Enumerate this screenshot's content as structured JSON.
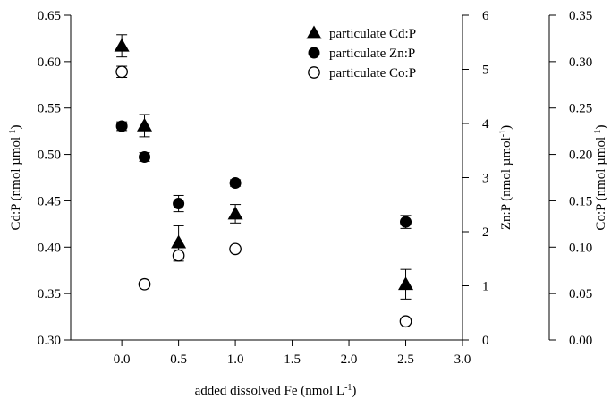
{
  "chart_data": {
    "type": "scatter",
    "x_axis": {
      "label_prefix": "added dissolved Fe (nmol L",
      "label_sup": "-1",
      "label_suffix": ")",
      "range": [
        -0.45,
        3.0
      ],
      "ticks": [
        "0.0",
        "0.5",
        "1.0",
        "1.5",
        "2.0",
        "2.5",
        "3.0"
      ]
    },
    "y_axes": [
      {
        "id": "cd",
        "label_prefix": "Cd:P (nmol µmol",
        "label_sup": "-1",
        "label_suffix": ")",
        "range": [
          0.3,
          0.65
        ],
        "ticks": [
          "0.30",
          "0.35",
          "0.40",
          "0.45",
          "0.50",
          "0.55",
          "0.60",
          "0.65"
        ]
      },
      {
        "id": "zn",
        "label_prefix": "Zn:P (nmol µmol",
        "label_sup": "-1",
        "label_suffix": ")",
        "range": [
          0,
          6
        ],
        "ticks": [
          "0",
          "1",
          "2",
          "3",
          "4",
          "5",
          "6"
        ]
      },
      {
        "id": "co",
        "label_prefix": "Co:P (nmol µmol",
        "label_sup": "-1",
        "label_suffix": ")",
        "range": [
          0.0,
          0.35
        ],
        "ticks": [
          "0.00",
          "0.05",
          "0.10",
          "0.15",
          "0.20",
          "0.25",
          "0.30",
          "0.35"
        ]
      }
    ],
    "series": [
      {
        "name": "particulate Cd:P",
        "axis": "cd",
        "marker": "triangle",
        "points": [
          {
            "x": 0.0,
            "y": 0.617,
            "err": 0.012
          },
          {
            "x": 0.2,
            "y": 0.531,
            "err": 0.012
          },
          {
            "x": 0.5,
            "y": 0.405,
            "err": 0.018
          },
          {
            "x": 1.0,
            "y": 0.436,
            "err": 0.01
          },
          {
            "x": 2.5,
            "y": 0.36,
            "err": 0.016
          }
        ]
      },
      {
        "name": "particulate Zn:P",
        "axis": "zn",
        "marker": "filled-circle",
        "points": [
          {
            "x": 0.0,
            "y": 3.95,
            "err": 0.08
          },
          {
            "x": 0.2,
            "y": 3.38,
            "err": 0.08
          },
          {
            "x": 0.5,
            "y": 2.52,
            "err": 0.15
          },
          {
            "x": 1.0,
            "y": 2.9,
            "err": 0.06
          },
          {
            "x": 2.5,
            "y": 2.18,
            "err": 0.12
          }
        ]
      },
      {
        "name": "particulate Co:P",
        "axis": "co",
        "marker": "open-circle",
        "points": [
          {
            "x": 0.0,
            "y": 0.289,
            "err": 0.006
          },
          {
            "x": 0.2,
            "y": 0.06,
            "err": 0
          },
          {
            "x": 0.5,
            "y": 0.091,
            "err": 0.006
          },
          {
            "x": 1.0,
            "y": 0.098,
            "err": 0
          },
          {
            "x": 2.5,
            "y": 0.02,
            "err": 0
          }
        ]
      }
    ],
    "legend_position": "top-right"
  }
}
